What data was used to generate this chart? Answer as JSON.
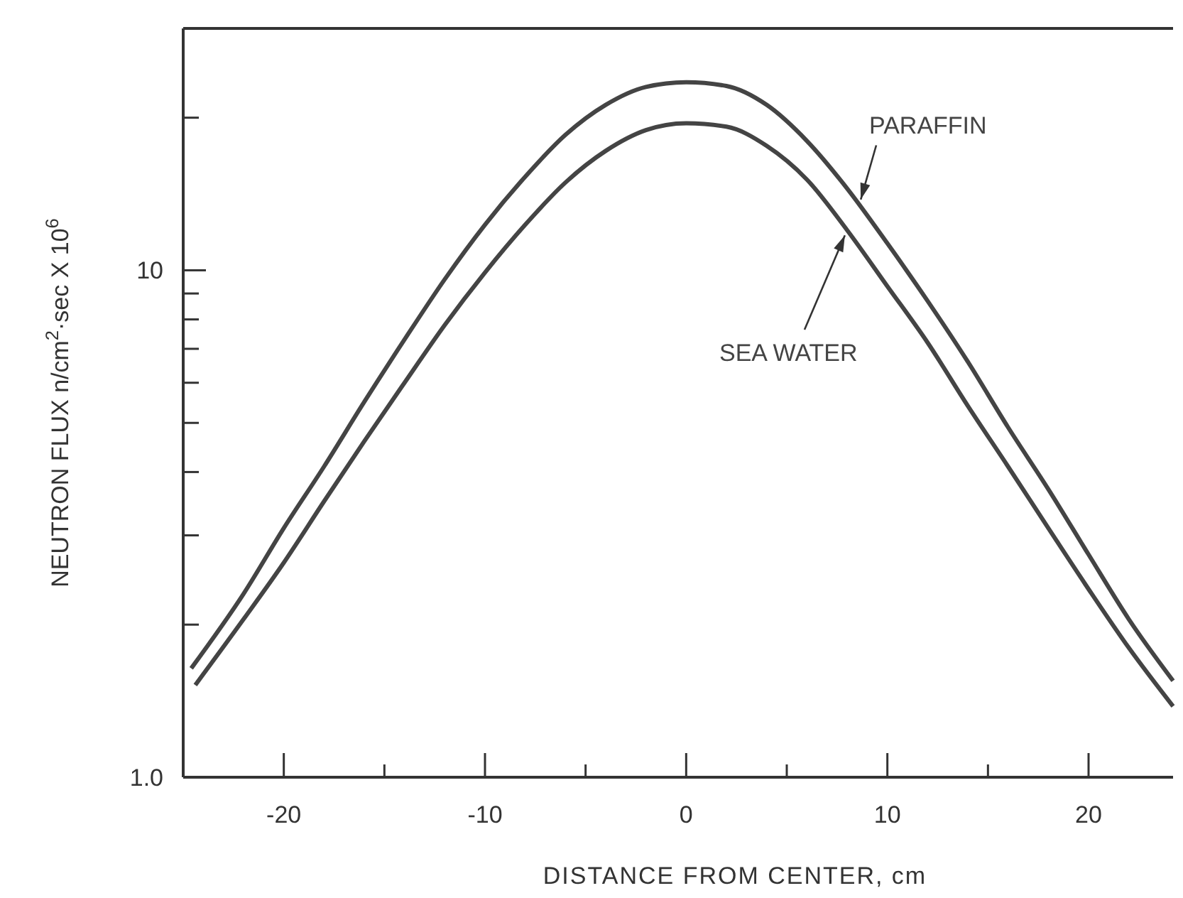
{
  "chart_data": {
    "type": "line",
    "xlabel": "DISTANCE FROM CENTER, cm",
    "ylabel": "NEUTRON FLUX n/cm$^{2}$·sec X 10$^{6}$",
    "log": "y",
    "grid": false,
    "line_style": "solid",
    "xlim": [
      -25,
      24.2
    ],
    "xticks": [
      -20,
      {
        "value": -15,
        "label": null
      },
      -10,
      {
        "value": -5,
        "label": null
      },
      0,
      {
        "value": 5,
        "label": null
      },
      10,
      {
        "value": 15,
        "label": null
      },
      20
    ],
    "ylim": [
      1,
      30
    ],
    "yticks": [
      {
        "value": 1,
        "label": "1.0"
      },
      {
        "value": 2,
        "label": null
      },
      {
        "value": 3,
        "label": null
      },
      {
        "value": 4,
        "label": null
      },
      {
        "value": 5,
        "label": null
      },
      {
        "value": 6,
        "label": null
      },
      {
        "value": 7,
        "label": null
      },
      {
        "value": 8,
        "label": null
      },
      {
        "value": 9,
        "label": null
      },
      10,
      {
        "value": 20,
        "label": null
      }
    ],
    "series": [
      {
        "name": "PARAFFIN",
        "color": "#444444",
        "x": [
          -24.6,
          -22,
          -20,
          -18,
          -16,
          -14,
          -12,
          -10,
          -8,
          -6,
          -4,
          -2,
          0,
          2,
          4,
          6,
          8,
          10,
          12,
          14,
          16,
          18,
          20,
          22,
          24.2
        ],
        "values": [
          1.64,
          2.3,
          3.1,
          4.1,
          5.5,
          7.3,
          9.6,
          12.3,
          15.3,
          18.5,
          21.2,
          23,
          23.5,
          23.1,
          21.2,
          18,
          14.5,
          11.3,
          8.7,
          6.6,
          4.9,
          3.7,
          2.75,
          2.05,
          1.55
        ]
      },
      {
        "name": "SEA WATER",
        "color": "#444444",
        "x": [
          -24.4,
          -22,
          -20,
          -18,
          -16,
          -14,
          -12,
          -10,
          -8,
          -6,
          -4,
          -2,
          0,
          2,
          4,
          6,
          8,
          10,
          12,
          14,
          16,
          18,
          20,
          22,
          24.2
        ],
        "values": [
          1.52,
          2.05,
          2.65,
          3.5,
          4.6,
          6.0,
          7.8,
          9.9,
          12.3,
          14.9,
          17.2,
          18.9,
          19.5,
          19.2,
          17.6,
          15.1,
          12.0,
          9.3,
          7.2,
          5.4,
          4.1,
          3.1,
          2.35,
          1.8,
          1.38
        ]
      }
    ]
  }
}
